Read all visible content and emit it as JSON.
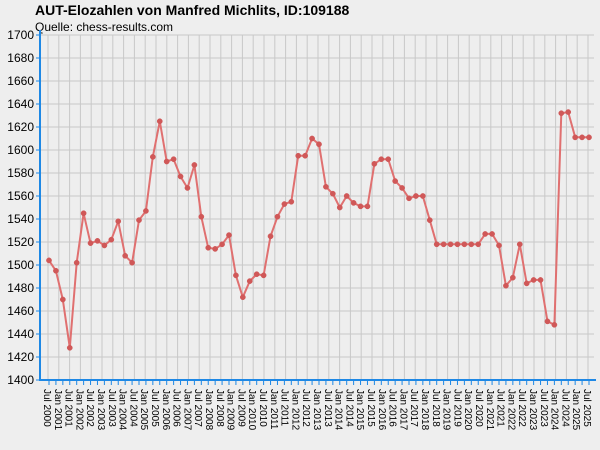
{
  "title": "AUT-Elozahlen von Manfred Michlits, ID:109188",
  "subtitle": "Quelle: chess-results.com",
  "colors": {
    "background": "#eeeeee",
    "grid": "#c8c8c8",
    "axis": "#1e88e5",
    "line": "#e07070",
    "marker": "#d05858"
  },
  "chart_data": {
    "type": "line",
    "ylim": [
      1400,
      1700
    ],
    "ytick_step": 20,
    "grid": true,
    "x_tick_labels": [
      "Jul 2000",
      "Jan 2001",
      "Jul 2001",
      "Jan 2002",
      "Jul 2002",
      "Jan 2003",
      "Jul 2003",
      "Jan 2004",
      "Jul 2004",
      "Jan 2005",
      "Jul 2005",
      "Jan 2006",
      "Jul 2006",
      "Jan 2007",
      "Jul 2007",
      "Jan 2008",
      "Jul 2008",
      "Jan 2009",
      "Jul 2009",
      "Jan 2010",
      "Jul 2010",
      "Jan 2011",
      "Jul 2011",
      "Jan 2012",
      "Jul 2012",
      "Jan 2013",
      "Jul 2013",
      "Jan 2014",
      "Jul 2014",
      "Jan 2015",
      "Jul 2015",
      "Jan 2016",
      "Jul 2016",
      "Jan 2017",
      "Jul 2017",
      "Jan 2018",
      "Jul 2018",
      "Jan 2019",
      "Jul 2019",
      "Jan 2020",
      "Jul 2020",
      "Jan 2021",
      "Jul 2021",
      "Jan 2022",
      "Jul 2022",
      "Jan 2023",
      "Jul 2023",
      "Jan 2024",
      "Jul 2024",
      "Jan 2025",
      "Jul 2025"
    ],
    "series": [
      {
        "values": [
          1504,
          1495,
          1470,
          1428,
          1502,
          1545,
          1519,
          1521,
          1517,
          1522,
          1538,
          1508,
          1502,
          1539,
          1547,
          1594,
          1625,
          1590,
          1592,
          1577,
          1567,
          1587,
          1542,
          1515,
          1514,
          1518,
          1526,
          1491,
          1472,
          1486,
          1492,
          1491,
          1525,
          1542,
          1553,
          1555,
          1595,
          1595,
          1610,
          1605,
          1568,
          1562,
          1550,
          1560,
          1554,
          1551,
          1551,
          1588,
          1592,
          1592,
          1573,
          1567,
          1558,
          1560,
          1560,
          1539,
          1518,
          1518,
          1518,
          1518,
          1518,
          1518,
          1518,
          1527,
          1527,
          1517,
          1482,
          1489,
          1518,
          1484,
          1487,
          1487,
          1451,
          1448,
          1632,
          1633,
          1611,
          1611,
          1611
        ]
      }
    ]
  }
}
